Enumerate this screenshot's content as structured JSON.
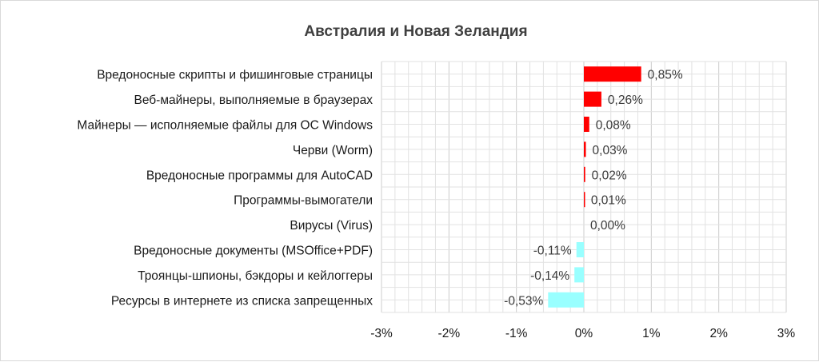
{
  "chart_data": {
    "type": "bar",
    "orientation": "horizontal",
    "title": "Австралия и Новая Зеландия",
    "categories": [
      "Вредоносные скрипты и фишинговые страницы",
      "Веб-майнеры, выполняемые в браузерах",
      "Майнеры — исполняемые файлы для ОС Windows",
      "Черви (Worm)",
      "Вредоносные программы для AutoCAD",
      "Программы-вымогатели",
      "Вирусы (Virus)",
      "Вредоносные документы (MSOffice+PDF)",
      "Троянцы-шпионы, бэкдоры и кейлоггеры",
      "Ресурсы в интернете из списка запрещенных"
    ],
    "values": [
      0.85,
      0.26,
      0.08,
      0.03,
      0.02,
      0.01,
      0.0,
      -0.11,
      -0.14,
      -0.53
    ],
    "value_labels": [
      "0,85%",
      "0,26%",
      "0,08%",
      "0,03%",
      "0,02%",
      "0,01%",
      "0,00%",
      "-0,11%",
      "-0,14%",
      "-0,53%"
    ],
    "xlim": [
      -3,
      3
    ],
    "x_ticks": [
      -3,
      -2,
      -1,
      0,
      1,
      2,
      3
    ],
    "x_tick_labels": [
      "-3%",
      "-2%",
      "-1%",
      "0%",
      "1%",
      "2%",
      "3%"
    ],
    "positive_color": "#ff0000",
    "negative_color": "#99ffff",
    "grid": true,
    "legend": "none"
  }
}
